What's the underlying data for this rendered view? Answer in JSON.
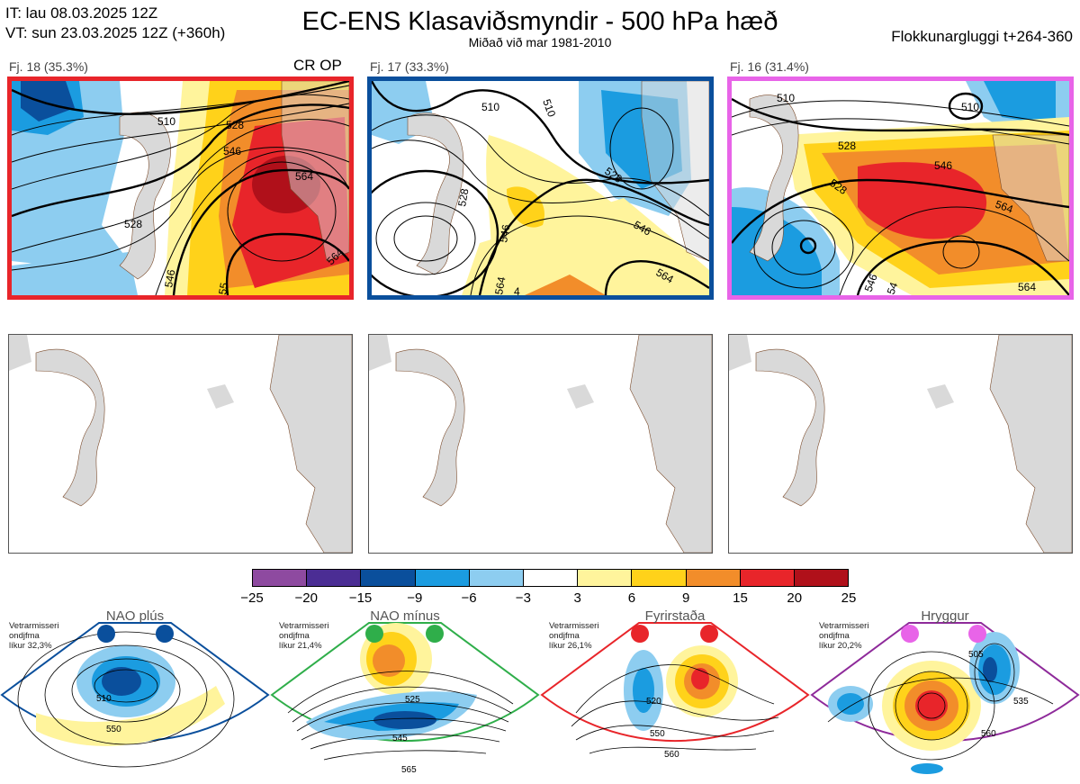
{
  "header": {
    "it_line": "IT: lau 08.03.2025 12Z",
    "vt_line": "VT: sun 23.03.2025 12Z  (+360h)",
    "title": "EC-ENS Klasaviðsmyndir - 500 hPa hæð",
    "subtitle": "Miðað við mar 1981-2010",
    "window": "Flokkunargluggi t+264-360"
  },
  "panels": [
    {
      "label": "Fj. 18 (35.3%)",
      "marker": "CR OP",
      "border_color": "#e8252a",
      "contours": [
        "510",
        "528",
        "546",
        "564",
        "528",
        "546",
        "564",
        "55"
      ]
    },
    {
      "label": "Fj. 17 (33.3%)",
      "marker": "",
      "border_color": "#0a4f9c",
      "contours": [
        "510",
        "510",
        "528",
        "528",
        "546",
        "546",
        "564",
        "564",
        "4"
      ]
    },
    {
      "label": "Fj. 16 (31.4%)",
      "marker": "",
      "border_color": "#e864e8",
      "contours": [
        "510",
        "510",
        "528",
        "546",
        "528",
        "564",
        "546",
        "564",
        "54"
      ]
    }
  ],
  "colorbar": {
    "colors": [
      "#8e4aa0",
      "#4b2d94",
      "#0a4f9c",
      "#1b9ce0",
      "#8dcdf0",
      "#ffffff",
      "#fff49c",
      "#ffd21a",
      "#f28d2a",
      "#e8252a",
      "#b0101a"
    ],
    "ticks": [
      "−25",
      "−20",
      "−15",
      "−9",
      "−6",
      "−3",
      "3",
      "6",
      "9",
      "15",
      "20",
      "25"
    ]
  },
  "regimes": [
    {
      "name": "NAO plús",
      "note": [
        "Vetrarmisseri",
        "ondjfma",
        "líkur 32,3%"
      ],
      "color": "#0a4f9c",
      "labels": [
        "510",
        "550"
      ]
    },
    {
      "name": "NAO mínus",
      "note": [
        "Vetrarmisseri",
        "ondjfma",
        "líkur 21,4%"
      ],
      "color": "#2fae4a",
      "labels": [
        "525",
        "545",
        "565"
      ]
    },
    {
      "name": "Fyrirstaða",
      "note": [
        "Vetrarmisseri",
        "ondjfma",
        "líkur 26,1%"
      ],
      "color": "#e8252a",
      "labels": [
        "520",
        "550",
        "560"
      ]
    },
    {
      "name": "Hryggur",
      "note": [
        "Vetrarmisseri",
        "ondjfma",
        "líkur 20,2%"
      ],
      "color": "#e864e8",
      "labels": [
        "505",
        "535",
        "560"
      ]
    }
  ]
}
